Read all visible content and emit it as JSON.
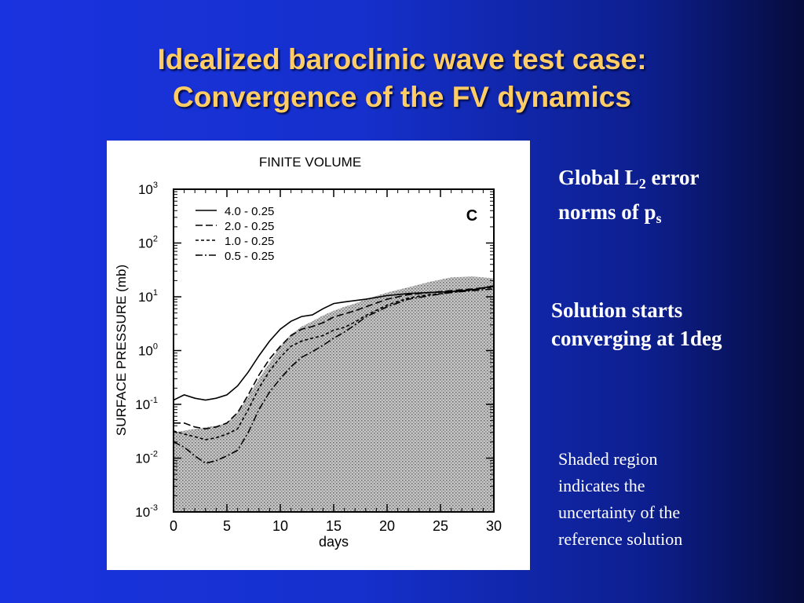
{
  "slide": {
    "title_line1": "Idealized baroclinic wave test case:",
    "title_line2": "Convergence of the FV dynamics",
    "notes": {
      "error_norms": {
        "prefix": "Global L",
        "sub": "2",
        "mid": " error",
        "line2_prefix": "norms of p",
        "line2_sub": "s"
      },
      "converging": {
        "line1": "Solution starts",
        "line2": "converging at 1deg"
      },
      "shaded": {
        "line1": "Shaded region",
        "line2": "indicates the",
        "line3": "uncertainty of the",
        "line4": "reference solution"
      }
    }
  },
  "chart_data": {
    "type": "line",
    "title": "FINITE VOLUME",
    "panel_label": "C",
    "xlabel": "days",
    "ylabel": "SURFACE PRESSURE (mb)",
    "xlim": [
      0,
      30
    ],
    "ylim": [
      0.001,
      1000
    ],
    "y_scale": "log",
    "x_ticks": [
      0,
      5,
      10,
      15,
      20,
      25,
      30
    ],
    "y_ticks": [
      {
        "base": "10",
        "exp": "-3"
      },
      {
        "base": "10",
        "exp": "-2"
      },
      {
        "base": "10",
        "exp": "-1"
      },
      {
        "base": "10",
        "exp": "0"
      },
      {
        "base": "10",
        "exp": "1"
      },
      {
        "base": "10",
        "exp": "2"
      },
      {
        "base": "10",
        "exp": "3"
      }
    ],
    "legend_position": "top-left",
    "series": [
      {
        "name": "4.0 - 0.25",
        "style": "solid",
        "x": [
          0,
          1,
          2,
          3,
          4,
          5,
          6,
          7,
          8,
          9,
          10,
          11,
          12,
          13,
          14,
          15,
          16,
          17,
          18,
          20,
          22,
          24,
          26,
          28,
          30
        ],
        "y": [
          0.12,
          0.15,
          0.13,
          0.12,
          0.13,
          0.15,
          0.22,
          0.4,
          0.8,
          1.5,
          2.5,
          3.5,
          4.3,
          4.6,
          6,
          7.5,
          8,
          8.5,
          9,
          10.5,
          11.5,
          12,
          12.5,
          13.5,
          16
        ]
      },
      {
        "name": "2.0 - 0.25",
        "style": "long-dash",
        "x": [
          0,
          1,
          2,
          3,
          4,
          5,
          6,
          7,
          8,
          9,
          10,
          11,
          12,
          13,
          14,
          15,
          16,
          17,
          18,
          20,
          22,
          24,
          26,
          28,
          30
        ],
        "y": [
          0.045,
          0.045,
          0.038,
          0.035,
          0.038,
          0.045,
          0.07,
          0.15,
          0.35,
          0.7,
          1.2,
          1.9,
          2.5,
          2.8,
          3.3,
          4.2,
          4.8,
          5.5,
          6.5,
          9,
          11,
          12,
          13,
          14,
          15.5
        ]
      },
      {
        "name": "1.0 - 0.25",
        "style": "short-dash",
        "x": [
          0,
          1,
          2,
          3,
          4,
          5,
          6,
          7,
          8,
          9,
          10,
          11,
          12,
          13,
          14,
          15,
          16,
          17,
          18,
          20,
          22,
          24,
          26,
          28,
          30
        ],
        "y": [
          0.032,
          0.028,
          0.025,
          0.022,
          0.024,
          0.028,
          0.035,
          0.08,
          0.2,
          0.42,
          0.75,
          1.2,
          1.5,
          1.7,
          1.9,
          2.4,
          2.7,
          3.4,
          4.5,
          7,
          9.5,
          11,
          12,
          13.5,
          15
        ]
      },
      {
        "name": "0.5 - 0.25",
        "style": "dash-dot",
        "x": [
          0,
          1,
          2,
          3,
          4,
          5,
          6,
          7,
          8,
          9,
          10,
          11,
          12,
          13,
          14,
          15,
          16,
          17,
          18,
          20,
          22,
          24,
          26,
          28,
          30
        ],
        "y": [
          0.02,
          0.016,
          0.011,
          0.008,
          0.009,
          0.011,
          0.014,
          0.03,
          0.08,
          0.17,
          0.3,
          0.5,
          0.75,
          0.95,
          1.25,
          1.7,
          2.2,
          3,
          4.2,
          6.5,
          9,
          10.5,
          12,
          13,
          14
        ]
      }
    ],
    "shaded_band": {
      "x": [
        0,
        2,
        4,
        5,
        6,
        7,
        8,
        9,
        10,
        11,
        12,
        13,
        14,
        15,
        16,
        17,
        18,
        20,
        22,
        24,
        26,
        28,
        30
      ],
      "upper": [
        0.03,
        0.035,
        0.04,
        0.045,
        0.07,
        0.14,
        0.3,
        0.6,
        1.2,
        2,
        2.8,
        3.5,
        4.5,
        5.5,
        6.5,
        7.5,
        9,
        12,
        15,
        19,
        23,
        24,
        22
      ]
    }
  }
}
